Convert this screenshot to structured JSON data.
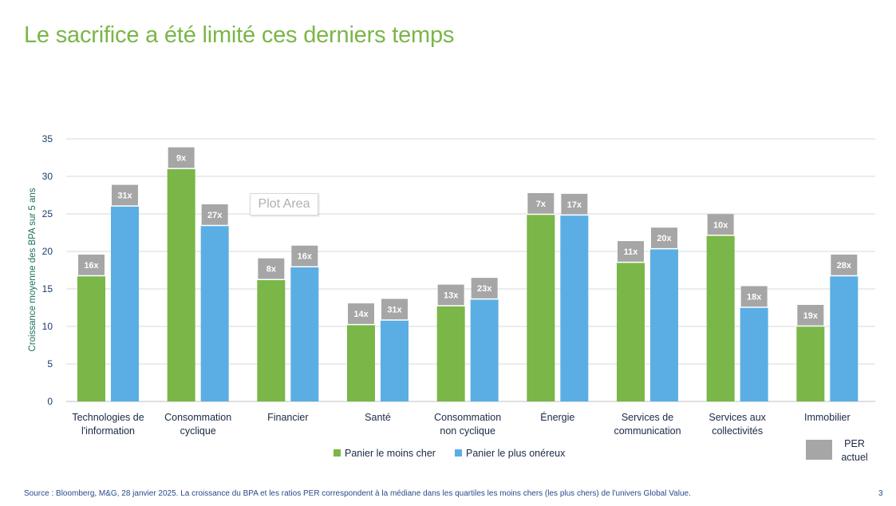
{
  "page": {
    "title": "Le sacrifice a été limité ces derniers temps",
    "footer": "Source : Bloomberg, M&G, 28 janvier 2025. La croissance du BPA et les ratios PER correspondent à la médiane dans les quartiles les moins chers (les plus chers) de l'univers Global Value.",
    "page_number": "3",
    "tooltip": "Plot Area"
  },
  "colors": {
    "green": "#7ab648",
    "blue": "#5baee4",
    "grey": "#a6a6a6",
    "axis_text": "#1a3a6a",
    "ylabel": "#1f6f5f"
  },
  "chart_data": {
    "type": "bar",
    "ylabel": "Croissance moyenne des BPA sur 5 ans",
    "ylim": [
      0,
      35
    ],
    "yticks": [
      0,
      5,
      10,
      15,
      20,
      25,
      30,
      35
    ],
    "grid": true,
    "legend_placement": "bottom",
    "categories": [
      [
        "Technologies de",
        "l'information"
      ],
      [
        "Consommation",
        "cyclique"
      ],
      [
        "Financier"
      ],
      [
        "Santé"
      ],
      [
        "Consommation",
        "non cyclique"
      ],
      [
        "Énergie"
      ],
      [
        "Services de",
        "communication"
      ],
      [
        "Services aux",
        "collectivités"
      ],
      [
        "Immobilier"
      ]
    ],
    "series": [
      {
        "name": "Panier le moins cher",
        "values": [
          16.7,
          31.0,
          16.2,
          10.2,
          12.7,
          24.9,
          18.5,
          22.1,
          10.0
        ],
        "per_labels": [
          "16x",
          "9x",
          "8x",
          "14x",
          "13x",
          "7x",
          "11x",
          "10x",
          "19x"
        ]
      },
      {
        "name": "Panier le plus onéreux",
        "values": [
          26.0,
          23.4,
          17.9,
          10.8,
          13.6,
          24.8,
          20.3,
          12.5,
          16.7
        ],
        "per_labels": [
          "31x",
          "27x",
          "16x",
          "31x",
          "23x",
          "17x",
          "20x",
          "18x",
          "28x"
        ]
      }
    ],
    "per_legend": [
      "PER",
      "actuel"
    ]
  }
}
